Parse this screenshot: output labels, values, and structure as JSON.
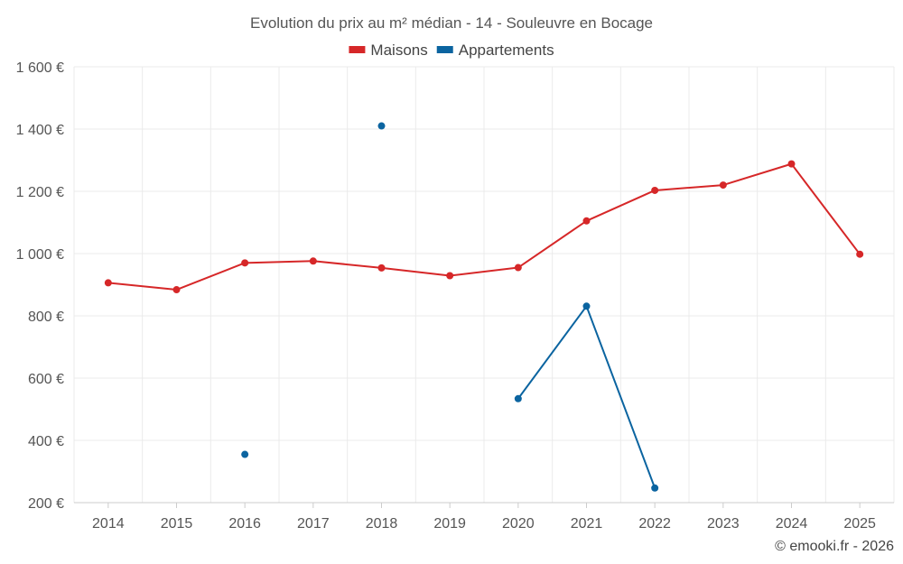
{
  "chart_data": {
    "type": "line",
    "title": "Evolution du prix au m² médian - 14 - Souleuvre en Bocage",
    "x": [
      "2014",
      "2015",
      "2016",
      "2017",
      "2018",
      "2019",
      "2020",
      "2021",
      "2022",
      "2023",
      "2024",
      "2025"
    ],
    "series": [
      {
        "name": "Maisons",
        "color": "#d62728",
        "values": [
          906,
          884,
          970,
          976,
          954,
          929,
          955,
          1105,
          1203,
          1220,
          1288,
          998
        ]
      },
      {
        "name": "Appartements",
        "color": "#0b64a0",
        "values": [
          null,
          null,
          355,
          null,
          1410,
          null,
          534,
          831,
          247,
          null,
          null,
          null
        ]
      }
    ],
    "ylim": [
      200,
      1600
    ],
    "yticks": [
      200,
      400,
      600,
      800,
      1000,
      1200,
      1400,
      1600
    ],
    "ytick_labels": [
      "200 €",
      "400 €",
      "600 €",
      "800 €",
      "1 000 €",
      "1 200 €",
      "1 400 €",
      "1 600 €"
    ],
    "grid": true,
    "legend_position": "top-center"
  },
  "credit": "© emooki.fr - 2026"
}
